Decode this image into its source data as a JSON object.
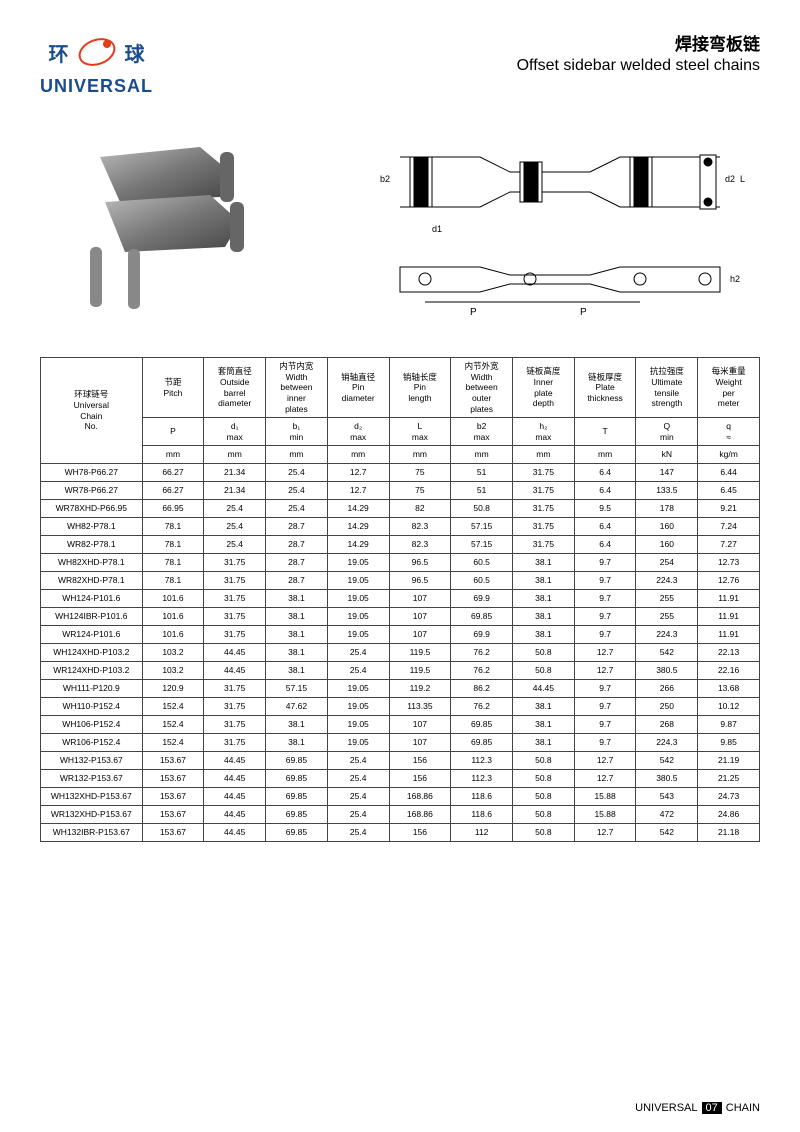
{
  "brand": {
    "char_left": "环",
    "char_right": "球",
    "text": "UNIVERSAL",
    "color": "#1a4b8c",
    "ring_color": "#e23c1a"
  },
  "title": {
    "cn": "焊接弯板链",
    "en": "Offset sidebar welded steel chains"
  },
  "columns": [
    {
      "cn": "环球链号",
      "en": "Universal Chain No.",
      "sym": "",
      "unit": ""
    },
    {
      "cn": "节距",
      "en": "Pitch",
      "sym": "P",
      "unit": "mm"
    },
    {
      "cn": "套筒直径",
      "en": "Outside barrel diameter",
      "sym": "d₁ max",
      "unit": "mm"
    },
    {
      "cn": "内节内宽",
      "en": "Width between inner plates",
      "sym": "b₁ min",
      "unit": "mm"
    },
    {
      "cn": "销轴直径",
      "en": "Pin diameter",
      "sym": "d₂ max",
      "unit": "mm"
    },
    {
      "cn": "销轴长度",
      "en": "Pin length",
      "sym": "L max",
      "unit": "mm"
    },
    {
      "cn": "内节外宽",
      "en": "Width between outer plates",
      "sym": "b2 max",
      "unit": "mm"
    },
    {
      "cn": "链板高度",
      "en": "Inner plate depth",
      "sym": "h₂ max",
      "unit": "mm"
    },
    {
      "cn": "链板厚度",
      "en": "Plate thickness",
      "sym": "T",
      "unit": "mm"
    },
    {
      "cn": "抗拉强度",
      "en": "Ultimate tensile strength",
      "sym": "Q min",
      "unit": "kN"
    },
    {
      "cn": "每米重量",
      "en": "Weight per meter",
      "sym": "q ≈",
      "unit": "kg/m"
    }
  ],
  "rows": [
    [
      "WH78-P66.27",
      "66.27",
      "21.34",
      "25.4",
      "12.7",
      "75",
      "51",
      "31.75",
      "6.4",
      "147",
      "6.44"
    ],
    [
      "WR78-P66.27",
      "66.27",
      "21.34",
      "25.4",
      "12.7",
      "75",
      "51",
      "31.75",
      "6.4",
      "133.5",
      "6.45"
    ],
    [
      "WR78XHD-P66.95",
      "66.95",
      "25.4",
      "25.4",
      "14.29",
      "82",
      "50.8",
      "31.75",
      "9.5",
      "178",
      "9.21"
    ],
    [
      "WH82-P78.1",
      "78.1",
      "25.4",
      "28.7",
      "14.29",
      "82.3",
      "57.15",
      "31.75",
      "6.4",
      "160",
      "7.24"
    ],
    [
      "WR82-P78.1",
      "78.1",
      "25.4",
      "28.7",
      "14.29",
      "82.3",
      "57.15",
      "31.75",
      "6.4",
      "160",
      "7.27"
    ],
    [
      "WH82XHD-P78.1",
      "78.1",
      "31.75",
      "28.7",
      "19.05",
      "96.5",
      "60.5",
      "38.1",
      "9.7",
      "254",
      "12.73"
    ],
    [
      "WR82XHD-P78.1",
      "78.1",
      "31.75",
      "28.7",
      "19.05",
      "96.5",
      "60.5",
      "38.1",
      "9.7",
      "224.3",
      "12.76"
    ],
    [
      "WH124-P101.6",
      "101.6",
      "31.75",
      "38.1",
      "19.05",
      "107",
      "69.9",
      "38.1",
      "9.7",
      "255",
      "11.91"
    ],
    [
      "WH124IBR-P101.6",
      "101.6",
      "31.75",
      "38.1",
      "19.05",
      "107",
      "69.85",
      "38.1",
      "9.7",
      "255",
      "11.91"
    ],
    [
      "WR124-P101.6",
      "101.6",
      "31.75",
      "38.1",
      "19.05",
      "107",
      "69.9",
      "38.1",
      "9.7",
      "224.3",
      "11.91"
    ],
    [
      "WH124XHD-P103.2",
      "103.2",
      "44.45",
      "38.1",
      "25.4",
      "119.5",
      "76.2",
      "50.8",
      "12.7",
      "542",
      "22.13"
    ],
    [
      "WR124XHD-P103.2",
      "103.2",
      "44.45",
      "38.1",
      "25.4",
      "119.5",
      "76.2",
      "50.8",
      "12.7",
      "380.5",
      "22.16"
    ],
    [
      "WH111-P120.9",
      "120.9",
      "31.75",
      "57.15",
      "19.05",
      "119.2",
      "86.2",
      "44.45",
      "9.7",
      "266",
      "13.68"
    ],
    [
      "WH110-P152.4",
      "152.4",
      "31.75",
      "47.62",
      "19.05",
      "113.35",
      "76.2",
      "38.1",
      "9.7",
      "250",
      "10.12"
    ],
    [
      "WH106-P152.4",
      "152.4",
      "31.75",
      "38.1",
      "19.05",
      "107",
      "69.85",
      "38.1",
      "9.7",
      "268",
      "9.87"
    ],
    [
      "WR106-P152.4",
      "152.4",
      "31.75",
      "38.1",
      "19.05",
      "107",
      "69.85",
      "38.1",
      "9.7",
      "224.3",
      "9.85"
    ],
    [
      "WH132-P153.67",
      "153.67",
      "44.45",
      "69.85",
      "25.4",
      "156",
      "112.3",
      "50.8",
      "12.7",
      "542",
      "21.19"
    ],
    [
      "WR132-P153.67",
      "153.67",
      "44.45",
      "69.85",
      "25.4",
      "156",
      "112.3",
      "50.8",
      "12.7",
      "380.5",
      "21.25"
    ],
    [
      "WH132XHD-P153.67",
      "153.67",
      "44.45",
      "69.85",
      "25.4",
      "168.86",
      "118.6",
      "50.8",
      "15.88",
      "543",
      "24.73"
    ],
    [
      "WR132XHD-P153.67",
      "153.67",
      "44.45",
      "69.85",
      "25.4",
      "168.86",
      "118.6",
      "50.8",
      "15.88",
      "472",
      "24.86"
    ],
    [
      "WH132IBR-P153.67",
      "153.67",
      "44.45",
      "69.85",
      "25.4",
      "156",
      "112",
      "50.8",
      "12.7",
      "542",
      "21.18"
    ]
  ],
  "footer": {
    "brand": "UNIVERSAL",
    "page": "07",
    "suffix": "CHAIN"
  }
}
